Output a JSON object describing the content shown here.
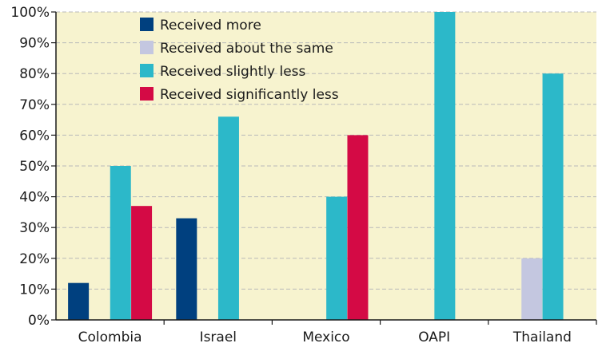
{
  "chart_data": {
    "type": "bar",
    "title": "",
    "xlabel": "",
    "ylabel": "",
    "ylim": [
      0,
      100
    ],
    "y_ticks": [
      "0%",
      "10%",
      "20%",
      "30%",
      "40%",
      "50%",
      "60%",
      "70%",
      "80%",
      "90%",
      "100%"
    ],
    "grid": true,
    "legend_position": "top-left",
    "background_color": "#f7f3cf",
    "categories": [
      "Colombia",
      "Israel",
      "Mexico",
      "OAPI",
      "Thailand"
    ],
    "series": [
      {
        "name": "Received more",
        "color": "#00407f",
        "values": [
          12,
          33,
          0,
          0,
          0
        ]
      },
      {
        "name": "Received about the same",
        "color": "#c4c7e0",
        "values": [
          0,
          0,
          0,
          0,
          20
        ]
      },
      {
        "name": "Received slightly less",
        "color": "#2cb8c9",
        "values": [
          50,
          66,
          40,
          100,
          80
        ]
      },
      {
        "name": "Received significantly less",
        "color": "#d40a45",
        "values": [
          37,
          0,
          60,
          0,
          0
        ]
      }
    ]
  }
}
